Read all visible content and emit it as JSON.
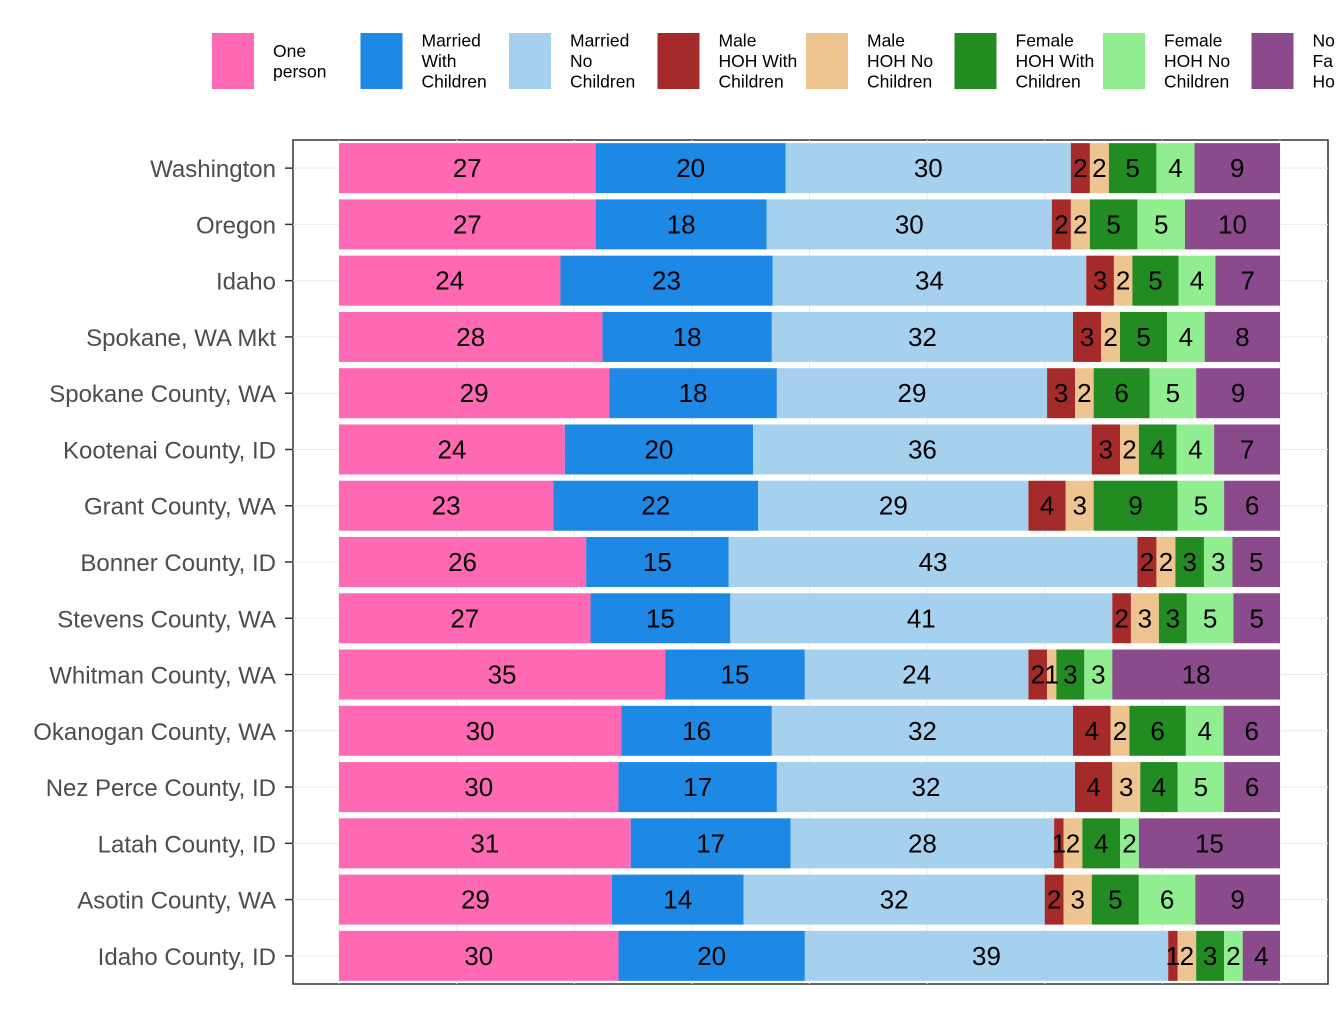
{
  "chart_data": {
    "type": "bar",
    "orientation": "horizontal",
    "stacked": true,
    "normalized": true,
    "title": "",
    "xlabel": "",
    "ylabel": "",
    "grid": true,
    "legend_position": "top",
    "categories": [
      "Washington",
      "Oregon",
      "Idaho",
      "Spokane, WA Mkt",
      "Spokane County, WA",
      "Kootenai County, ID",
      "Grant County, WA",
      "Bonner County, ID",
      "Stevens County, WA",
      "Whitman County, WA",
      "Okanogan County, WA",
      "Nez Perce County, ID",
      "Latah County, ID",
      "Asotin County, WA",
      "Idaho County, ID"
    ],
    "series": [
      {
        "name": "One person",
        "legend_lines": [
          "One",
          "person"
        ],
        "color": "#FF69B4",
        "values": [
          27,
          27,
          24,
          28,
          29,
          24,
          23,
          26,
          27,
          35,
          30,
          30,
          31,
          29,
          30
        ]
      },
      {
        "name": "Married With Children",
        "legend_lines": [
          "Married",
          "With",
          "Children"
        ],
        "color": "#1E88E5",
        "values": [
          20,
          18,
          23,
          18,
          18,
          20,
          22,
          15,
          15,
          15,
          16,
          17,
          17,
          14,
          20
        ]
      },
      {
        "name": "Married No Children",
        "legend_lines": [
          "Married",
          "No",
          "Children"
        ],
        "color": "#A6D1EE",
        "values": [
          30,
          30,
          34,
          32,
          29,
          36,
          29,
          43,
          41,
          24,
          32,
          32,
          28,
          32,
          39
        ]
      },
      {
        "name": "Male HOH With Children",
        "legend_lines": [
          "Male",
          "HOH With",
          "Children"
        ],
        "color": "#A52A2A",
        "values": [
          2,
          2,
          3,
          3,
          3,
          3,
          4,
          2,
          2,
          2,
          4,
          4,
          1,
          2,
          1
        ]
      },
      {
        "name": "Male HOH No Children",
        "legend_lines": [
          "Male",
          "HOH No",
          "Children"
        ],
        "color": "#EEC591",
        "values": [
          2,
          2,
          2,
          2,
          2,
          2,
          3,
          2,
          3,
          1,
          2,
          3,
          2,
          3,
          2
        ]
      },
      {
        "name": "Female HOH With Children",
        "legend_lines": [
          "Female",
          "HOH With",
          "Children"
        ],
        "color": "#228B22",
        "values": [
          5,
          5,
          5,
          5,
          6,
          4,
          9,
          3,
          3,
          3,
          6,
          4,
          4,
          5,
          3
        ]
      },
      {
        "name": "Female HOH No Children",
        "legend_lines": [
          "Female",
          "HOH No",
          "Children"
        ],
        "color": "#90EE90",
        "values": [
          4,
          5,
          4,
          4,
          5,
          4,
          5,
          3,
          5,
          3,
          4,
          5,
          2,
          6,
          2
        ]
      },
      {
        "name": "Non Family Households",
        "legend_lines": [
          "No",
          "Fa",
          "Ho"
        ],
        "color": "#8B4A8B",
        "values": [
          9,
          10,
          7,
          8,
          9,
          7,
          6,
          5,
          5,
          18,
          6,
          6,
          15,
          9,
          4
        ]
      }
    ]
  }
}
